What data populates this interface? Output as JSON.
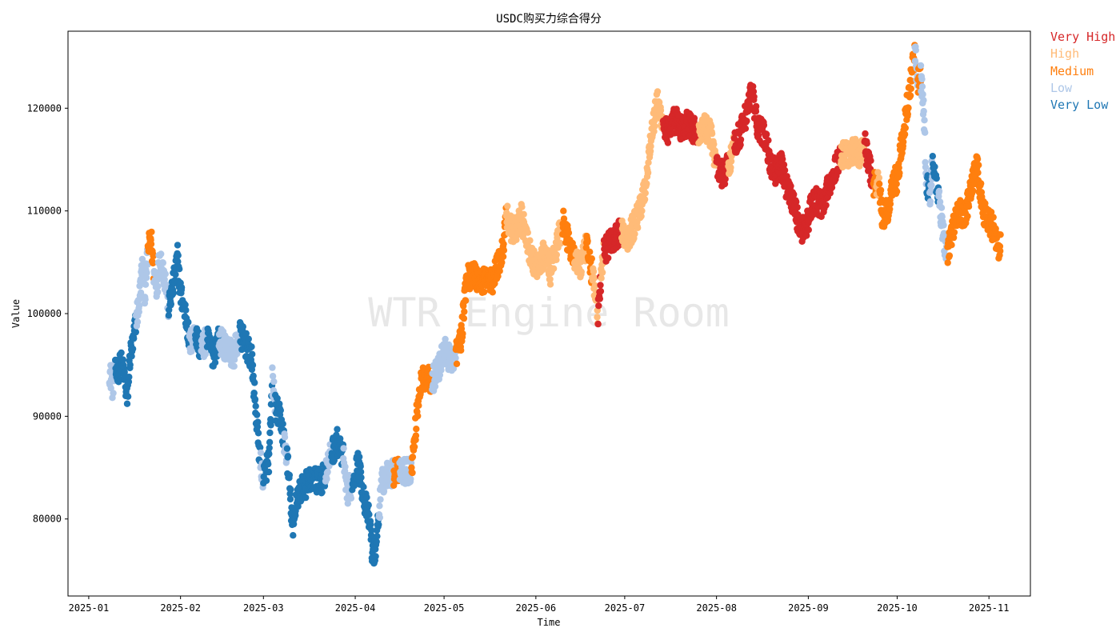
{
  "chart_data": {
    "type": "scatter",
    "title": "USDC购买力综合得分",
    "xlabel": "Time",
    "ylabel": "Value",
    "watermark": "WTR Engine Room",
    "legend_position": "outside-top-right",
    "grid": false,
    "x_range": [
      "2024-12-25",
      "2025-11-15"
    ],
    "ylim": [
      72500,
      127500
    ],
    "x_ticks": [
      "2025-01-01",
      "2025-02-01",
      "2025-03-01",
      "2025-04-01",
      "2025-05-01",
      "2025-06-01",
      "2025-07-01",
      "2025-08-01",
      "2025-09-01",
      "2025-10-01",
      "2025-11-01"
    ],
    "x_tick_labels": [
      "2025-01",
      "2025-02",
      "2025-03",
      "2025-04",
      "2025-05",
      "2025-06",
      "2025-07",
      "2025-08",
      "2025-09",
      "2025-10",
      "2025-11"
    ],
    "y_ticks": [
      80000,
      90000,
      100000,
      110000,
      120000
    ],
    "y_tick_labels": [
      "80000",
      "90000",
      "100000",
      "110000",
      "120000"
    ],
    "series": [
      {
        "name": "Very High",
        "color": "#d62728"
      },
      {
        "name": "High",
        "color": "#ffbb78"
      },
      {
        "name": "Medium",
        "color": "#ff7f0e"
      },
      {
        "name": "Low",
        "color": "#aec7e8"
      },
      {
        "name": "Very Low",
        "color": "#1f77b4"
      }
    ],
    "segments": [
      [
        "2025-01-08",
        94500,
        "Low"
      ],
      [
        "2025-01-09",
        93000,
        "Low"
      ],
      [
        "2025-01-10",
        94200,
        "Very Low"
      ],
      [
        "2025-01-12",
        95000,
        "Very Low"
      ],
      [
        "2025-01-13",
        94000,
        "Very Low"
      ],
      [
        "2025-01-14",
        91500,
        "Very Low"
      ],
      [
        "2025-01-15",
        96000,
        "Very Low"
      ],
      [
        "2025-01-16",
        97000,
        "Very Low"
      ],
      [
        "2025-01-17",
        99500,
        "Low"
      ],
      [
        "2025-01-18",
        101000,
        "Low"
      ],
      [
        "2025-01-19",
        104500,
        "Low"
      ],
      [
        "2025-01-20",
        102000,
        "Low"
      ],
      [
        "2025-01-21",
        106000,
        "Medium"
      ],
      [
        "2025-01-22",
        107500,
        "Medium"
      ],
      [
        "2025-01-23",
        104000,
        "Low"
      ],
      [
        "2025-01-24",
        102500,
        "Low"
      ],
      [
        "2025-01-25",
        105500,
        "Low"
      ],
      [
        "2025-01-26",
        104500,
        "Low"
      ],
      [
        "2025-01-27",
        103000,
        "Low"
      ],
      [
        "2025-01-28",
        100500,
        "Very Low"
      ],
      [
        "2025-01-30",
        103500,
        "Very Low"
      ],
      [
        "2025-01-31",
        105500,
        "Very Low"
      ],
      [
        "2025-02-01",
        102000,
        "Very Low"
      ],
      [
        "2025-02-03",
        99500,
        "Very Low"
      ],
      [
        "2025-02-04",
        97000,
        "Low"
      ],
      [
        "2025-02-06",
        98000,
        "Very Low"
      ],
      [
        "2025-02-08",
        96500,
        "Low"
      ],
      [
        "2025-02-10",
        97500,
        "Very Low"
      ],
      [
        "2025-02-12",
        96000,
        "Very Low"
      ],
      [
        "2025-02-14",
        97500,
        "Low"
      ],
      [
        "2025-02-17",
        96500,
        "Low"
      ],
      [
        "2025-02-19",
        96000,
        "Low"
      ],
      [
        "2025-02-21",
        98000,
        "Very Low"
      ],
      [
        "2025-02-23",
        97000,
        "Very Low"
      ],
      [
        "2025-02-25",
        95500,
        "Very Low"
      ],
      [
        "2025-02-26",
        92000,
        "Very Low"
      ],
      [
        "2025-02-27",
        88500,
        "Very Low"
      ],
      [
        "2025-02-28",
        85500,
        "Low"
      ],
      [
        "2025-03-01",
        84000,
        "Very Low"
      ],
      [
        "2025-03-03",
        86000,
        "Very Low"
      ],
      [
        "2025-03-04",
        93500,
        "Low"
      ],
      [
        "2025-03-05",
        91000,
        "Very Low"
      ],
      [
        "2025-03-07",
        89500,
        "Very Low"
      ],
      [
        "2025-03-08",
        87500,
        "Low"
      ],
      [
        "2025-03-09",
        86000,
        "Very Low"
      ],
      [
        "2025-03-10",
        82500,
        "Very Low"
      ],
      [
        "2025-03-11",
        78500,
        "Very Low"
      ],
      [
        "2025-03-12",
        82000,
        "Very Low"
      ],
      [
        "2025-03-14",
        83000,
        "Very Low"
      ],
      [
        "2025-03-16",
        83500,
        "Very Low"
      ],
      [
        "2025-03-18",
        84000,
        "Very Low"
      ],
      [
        "2025-03-20",
        83500,
        "Very Low"
      ],
      [
        "2025-03-22",
        84500,
        "Low"
      ],
      [
        "2025-03-24",
        86500,
        "Very Low"
      ],
      [
        "2025-03-26",
        87500,
        "Very Low"
      ],
      [
        "2025-03-28",
        86000,
        "Low"
      ],
      [
        "2025-03-29",
        82500,
        "Low"
      ],
      [
        "2025-03-31",
        83500,
        "Very Low"
      ],
      [
        "2025-04-02",
        85500,
        "Very Low"
      ],
      [
        "2025-04-04",
        82000,
        "Very Low"
      ],
      [
        "2025-04-06",
        79500,
        "Very Low"
      ],
      [
        "2025-04-07",
        76000,
        "Very Low"
      ],
      [
        "2025-04-08",
        77500,
        "Very Low"
      ],
      [
        "2025-04-09",
        80500,
        "Low"
      ],
      [
        "2025-04-10",
        83500,
        "Low"
      ],
      [
        "2025-04-12",
        84500,
        "Low"
      ],
      [
        "2025-04-14",
        84500,
        "Medium"
      ],
      [
        "2025-04-16",
        85000,
        "Low"
      ],
      [
        "2025-04-18",
        84500,
        "Low"
      ],
      [
        "2025-04-20",
        85000,
        "Medium"
      ],
      [
        "2025-04-21",
        87500,
        "Medium"
      ],
      [
        "2025-04-22",
        91000,
        "Medium"
      ],
      [
        "2025-04-23",
        93000,
        "Medium"
      ],
      [
        "2025-04-25",
        94000,
        "Medium"
      ],
      [
        "2025-04-27",
        93500,
        "Low"
      ],
      [
        "2025-04-29",
        94500,
        "Low"
      ],
      [
        "2025-05-01",
        96500,
        "Low"
      ],
      [
        "2025-05-03",
        95500,
        "Low"
      ],
      [
        "2025-05-05",
        96000,
        "Medium"
      ],
      [
        "2025-05-07",
        98000,
        "Medium"
      ],
      [
        "2025-05-08",
        102000,
        "Medium"
      ],
      [
        "2025-05-09",
        103500,
        "Medium"
      ],
      [
        "2025-05-11",
        104000,
        "Medium"
      ],
      [
        "2025-05-13",
        103000,
        "Medium"
      ],
      [
        "2025-05-15",
        103500,
        "Medium"
      ],
      [
        "2025-05-17",
        103000,
        "Medium"
      ],
      [
        "2025-05-19",
        104500,
        "Medium"
      ],
      [
        "2025-05-21",
        106500,
        "Medium"
      ],
      [
        "2025-05-22",
        110000,
        "High"
      ],
      [
        "2025-05-23",
        108500,
        "High"
      ],
      [
        "2025-05-25",
        108000,
        "High"
      ],
      [
        "2025-05-27",
        109500,
        "High"
      ],
      [
        "2025-05-29",
        107000,
        "High"
      ],
      [
        "2025-05-31",
        105000,
        "High"
      ],
      [
        "2025-06-02",
        104500,
        "High"
      ],
      [
        "2025-06-04",
        106000,
        "High"
      ],
      [
        "2025-06-06",
        104000,
        "High"
      ],
      [
        "2025-06-08",
        106500,
        "High"
      ],
      [
        "2025-06-10",
        109000,
        "Medium"
      ],
      [
        "2025-06-12",
        107000,
        "Medium"
      ],
      [
        "2025-06-14",
        105500,
        "High"
      ],
      [
        "2025-06-16",
        104500,
        "High"
      ],
      [
        "2025-06-18",
        106500,
        "Medium"
      ],
      [
        "2025-06-20",
        104000,
        "High"
      ],
      [
        "2025-06-21",
        102000,
        "High"
      ],
      [
        "2025-06-22",
        100000,
        "Very High"
      ],
      [
        "2025-06-23",
        103500,
        "High"
      ],
      [
        "2025-06-24",
        106000,
        "Very High"
      ],
      [
        "2025-06-26",
        107000,
        "Very High"
      ],
      [
        "2025-06-28",
        107500,
        "Very High"
      ],
      [
        "2025-06-30",
        108000,
        "High"
      ],
      [
        "2025-07-02",
        107500,
        "High"
      ],
      [
        "2025-07-04",
        108500,
        "High"
      ],
      [
        "2025-07-06",
        110000,
        "High"
      ],
      [
        "2025-07-08",
        112500,
        "High"
      ],
      [
        "2025-07-10",
        117500,
        "High"
      ],
      [
        "2025-07-12",
        120500,
        "High"
      ],
      [
        "2025-07-14",
        118500,
        "Very High"
      ],
      [
        "2025-07-16",
        117500,
        "Very High"
      ],
      [
        "2025-07-18",
        119000,
        "Very High"
      ],
      [
        "2025-07-20",
        118000,
        "Very High"
      ],
      [
        "2025-07-22",
        118500,
        "Very High"
      ],
      [
        "2025-07-24",
        118000,
        "Very High"
      ],
      [
        "2025-07-26",
        117500,
        "High"
      ],
      [
        "2025-07-28",
        118000,
        "High"
      ],
      [
        "2025-07-30",
        117500,
        "High"
      ],
      [
        "2025-08-01",
        114500,
        "Very High"
      ],
      [
        "2025-08-03",
        113500,
        "Very High"
      ],
      [
        "2025-08-05",
        114500,
        "High"
      ],
      [
        "2025-08-07",
        116500,
        "Very High"
      ],
      [
        "2025-08-09",
        117500,
        "Very High"
      ],
      [
        "2025-08-11",
        119500,
        "Very High"
      ],
      [
        "2025-08-13",
        121500,
        "Very High"
      ],
      [
        "2025-08-15",
        118000,
        "Very High"
      ],
      [
        "2025-08-17",
        117500,
        "Very High"
      ],
      [
        "2025-08-19",
        115000,
        "Very High"
      ],
      [
        "2025-08-21",
        113500,
        "Very High"
      ],
      [
        "2025-08-23",
        114500,
        "Very High"
      ],
      [
        "2025-08-25",
        112000,
        "Very High"
      ],
      [
        "2025-08-27",
        111000,
        "Very High"
      ],
      [
        "2025-08-29",
        108500,
        "Very High"
      ],
      [
        "2025-08-31",
        108000,
        "Very High"
      ],
      [
        "2025-09-02",
        110500,
        "Very High"
      ],
      [
        "2025-09-04",
        111000,
        "Very High"
      ],
      [
        "2025-09-06",
        110500,
        "Very High"
      ],
      [
        "2025-09-08",
        112500,
        "Very High"
      ],
      [
        "2025-09-10",
        114000,
        "Very High"
      ],
      [
        "2025-09-12",
        115500,
        "High"
      ],
      [
        "2025-09-14",
        115500,
        "High"
      ],
      [
        "2025-09-16",
        116000,
        "High"
      ],
      [
        "2025-09-18",
        115500,
        "High"
      ],
      [
        "2025-09-20",
        116500,
        "Very High"
      ],
      [
        "2025-09-22",
        114000,
        "Very High"
      ],
      [
        "2025-09-23",
        112500,
        "Medium"
      ],
      [
        "2025-09-24",
        113000,
        "High"
      ],
      [
        "2025-09-25",
        112000,
        "Medium"
      ],
      [
        "2025-09-26",
        109500,
        "Medium"
      ],
      [
        "2025-09-28",
        110000,
        "Medium"
      ],
      [
        "2025-09-30",
        113500,
        "Medium"
      ],
      [
        "2025-10-01",
        112500,
        "Medium"
      ],
      [
        "2025-10-02",
        115500,
        "Medium"
      ],
      [
        "2025-10-04",
        119500,
        "Medium"
      ],
      [
        "2025-10-06",
        123500,
        "Medium"
      ],
      [
        "2025-10-07",
        125500,
        "Low"
      ],
      [
        "2025-10-08",
        122500,
        "Medium"
      ],
      [
        "2025-10-09",
        123000,
        "Low"
      ],
      [
        "2025-10-10",
        119500,
        "Low"
      ],
      [
        "2025-10-11",
        112500,
        "Very Low"
      ],
      [
        "2025-10-12",
        111500,
        "Low"
      ],
      [
        "2025-10-13",
        114500,
        "Very Low"
      ],
      [
        "2025-10-15",
        111500,
        "Low"
      ],
      [
        "2025-10-17",
        107000,
        "Low"
      ],
      [
        "2025-10-18",
        106000,
        "Medium"
      ],
      [
        "2025-10-20",
        108500,
        "Medium"
      ],
      [
        "2025-10-22",
        110000,
        "Medium"
      ],
      [
        "2025-10-24",
        109500,
        "Medium"
      ],
      [
        "2025-10-26",
        112500,
        "Medium"
      ],
      [
        "2025-10-28",
        114500,
        "Medium"
      ],
      [
        "2025-10-30",
        110000,
        "Medium"
      ],
      [
        "2025-11-01",
        109000,
        "Medium"
      ],
      [
        "2025-11-03",
        108000,
        "Medium"
      ],
      [
        "2025-11-04",
        106500,
        "Medium"
      ]
    ]
  }
}
